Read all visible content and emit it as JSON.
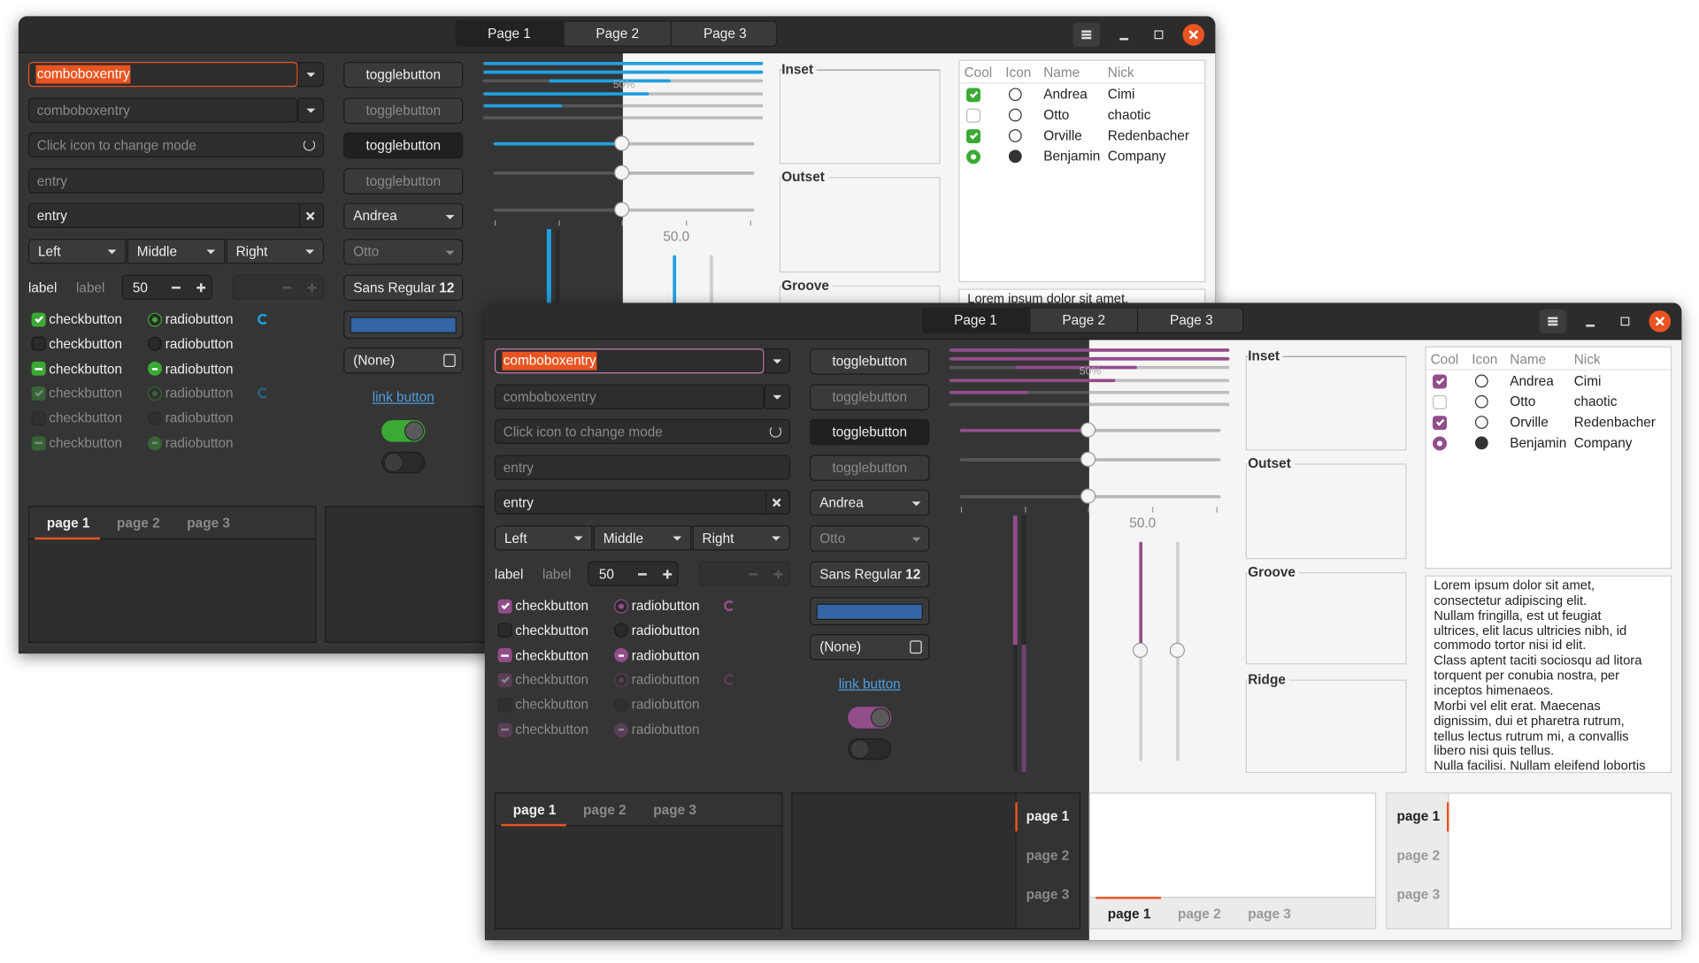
{
  "windows": [
    {
      "check_color": "#3aaa35",
      "slider_color": "#1fa0e0",
      "focus_color": "#e95420",
      "selection_color": "#e95420",
      "tabs": [
        "Page 1",
        "Page 2",
        "Page 3"
      ],
      "combo_entries": [
        "comboboxentry",
        "comboboxentry"
      ],
      "icon_entry_placeholder": "Click icon to change mode",
      "entries": [
        "entry",
        "entry"
      ],
      "combos": [
        "Left",
        "Middle",
        "Right"
      ],
      "labels": [
        "label",
        "label"
      ],
      "spin_value": 50,
      "checkbuttons": [
        "checkbutton",
        "checkbutton",
        "checkbutton",
        "checkbutton",
        "checkbutton",
        "checkbutton"
      ],
      "radiobuttons": [
        "radiobutton",
        "radiobutton",
        "radiobutton",
        "radiobutton",
        "radiobutton",
        "radiobutton"
      ],
      "togglebuttons": [
        "togglebutton",
        "togglebutton",
        "togglebutton",
        "togglebutton"
      ],
      "combo_boxes": [
        "Andrea",
        "Otto"
      ],
      "font_button": {
        "name": "Sans Regular",
        "size": 12
      },
      "file_button": "(None)",
      "link_button": "link button",
      "progress_text": "50%",
      "scale_value": "50.0",
      "frames": [
        "Inset",
        "Outset",
        "Groove"
      ],
      "tree": {
        "columns": [
          "Cool",
          "Icon",
          "Name",
          "Nick"
        ],
        "rows": [
          [
            "Andrea",
            "Cimi"
          ],
          [
            "Otto",
            "chaotic"
          ],
          [
            "Orville",
            "Redenbacher"
          ],
          [
            "Benjamin",
            "Company"
          ]
        ]
      },
      "text_view": [
        "Lorem ipsum dolor sit amet,"
      ],
      "notebooks": [
        [
          "page 1",
          "page 2",
          "page 3"
        ]
      ]
    },
    {
      "check_color": "#924d8b",
      "slider_color": "#924d8b",
      "focus_color": "#c97ab0",
      "selection_color": "#e95420",
      "tabs": [
        "Page 1",
        "Page 2",
        "Page 3"
      ],
      "combo_entries": [
        "comboboxentry",
        "comboboxentry"
      ],
      "icon_entry_placeholder": "Click icon to change mode",
      "entries": [
        "entry",
        "entry"
      ],
      "combos": [
        "Left",
        "Middle",
        "Right"
      ],
      "labels": [
        "label",
        "label"
      ],
      "spin_value": 50,
      "checkbuttons": [
        "checkbutton",
        "checkbutton",
        "checkbutton",
        "checkbutton",
        "checkbutton",
        "checkbutton"
      ],
      "radiobuttons": [
        "radiobutton",
        "radiobutton",
        "radiobutton",
        "radiobutton",
        "radiobutton",
        "radiobutton"
      ],
      "togglebuttons": [
        "togglebutton",
        "togglebutton",
        "togglebutton",
        "togglebutton"
      ],
      "combo_boxes": [
        "Andrea",
        "Otto"
      ],
      "font_button": {
        "name": "Sans Regular",
        "size": 12
      },
      "file_button": "(None)",
      "link_button": "link button",
      "progress_text": "50%",
      "scale_value": "50.0",
      "frames": [
        "Inset",
        "Outset",
        "Groove",
        "Ridge"
      ],
      "tree": {
        "columns": [
          "Cool",
          "Icon",
          "Name",
          "Nick"
        ],
        "rows": [
          [
            "Andrea",
            "Cimi"
          ],
          [
            "Otto",
            "chaotic"
          ],
          [
            "Orville",
            "Redenbacher"
          ],
          [
            "Benjamin",
            "Company"
          ]
        ]
      },
      "text_view": [
        "Lorem ipsum dolor sit amet,",
        "consectetur adipiscing elit.",
        "Nullam fringilla, est ut feugiat",
        "ultrices, elit lacus ultricies nibh, id",
        "commodo tortor nisi id elit.",
        "Class aptent taciti sociosqu ad litora",
        "torquent per conubia nostra, per",
        "inceptos himenaeos.",
        "Morbi vel elit erat. Maecenas",
        "dignissim, dui et pharetra rutrum,",
        "tellus lectus rutrum mi, a convallis",
        "libero nisi quis tellus.",
        "Nulla facilisi. Nullam eleifend lobortis"
      ],
      "notebooks": [
        [
          "page 1",
          "page 2",
          "page 3"
        ],
        [
          "page 1",
          "page 2",
          "page 3"
        ],
        [
          "page 1",
          "page 2",
          "page 3"
        ],
        [
          "page 1",
          "page 2",
          "page 3"
        ]
      ]
    }
  ]
}
